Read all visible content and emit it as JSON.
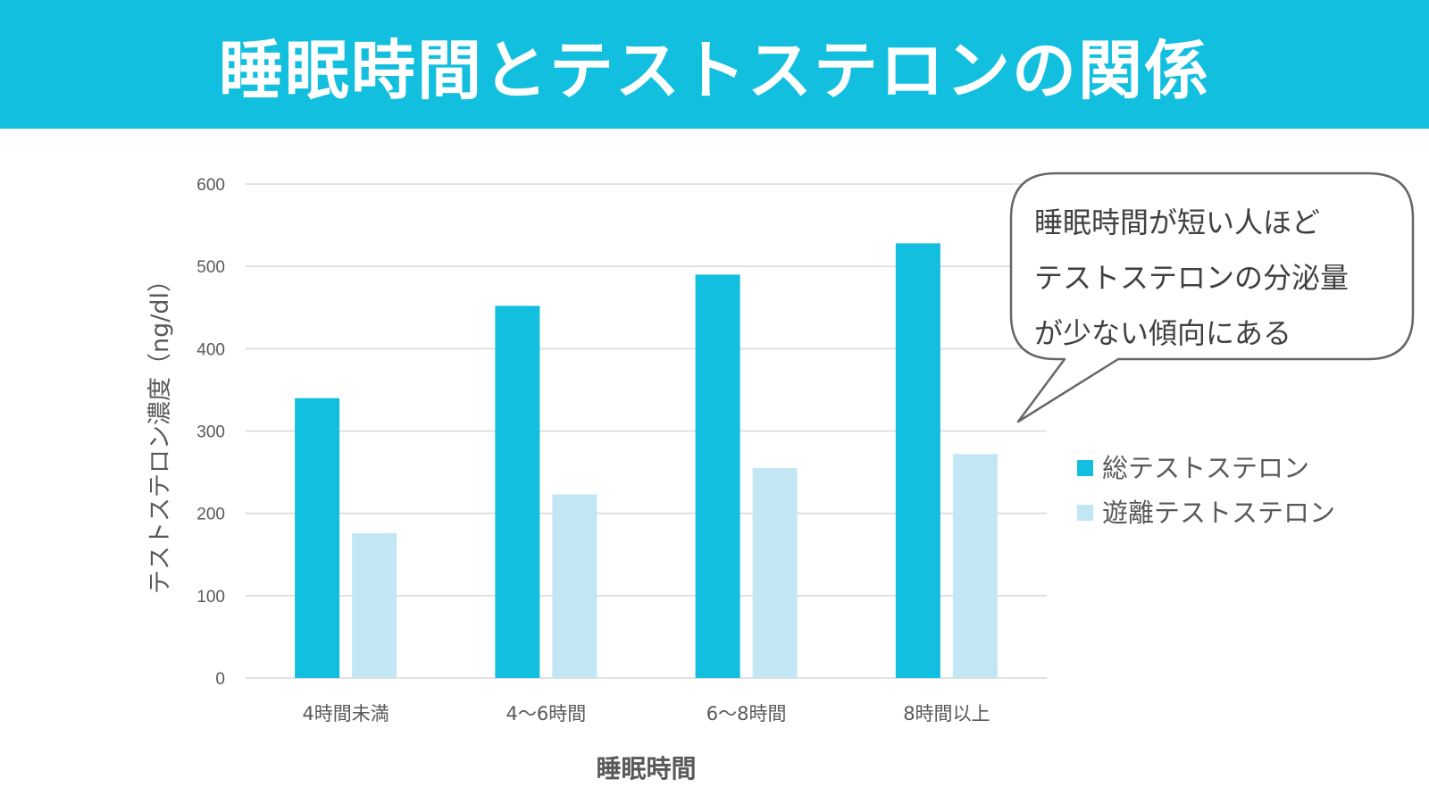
{
  "header": {
    "title": "睡眠時間とテストステロンの関係"
  },
  "callout": {
    "lines": [
      "睡眠時間が短い人ほど",
      "テストステロンの分泌量",
      "が少ない傾向にある"
    ]
  },
  "colors": {
    "banner": "#12bfde",
    "total": "#12bfde",
    "free": "#c2e6f4",
    "grid": "#d9d9d9",
    "text": "#595959"
  },
  "chart_data": {
    "type": "bar",
    "categories": [
      "4時間未満",
      "4〜6時間",
      "6〜8時間",
      "8時間以上"
    ],
    "series": [
      {
        "name": "総テストステロン",
        "values": [
          340,
          452,
          490,
          528
        ]
      },
      {
        "name": "遊離テストステロン",
        "values": [
          176,
          223,
          255,
          272
        ]
      }
    ],
    "xlabel": "睡眠時間",
    "ylabel": "テストステロン濃度（ng/dl）",
    "ylim": [
      0,
      600
    ],
    "yticks": [
      0,
      100,
      200,
      300,
      400,
      500,
      600
    ],
    "grid": true,
    "legend": "right"
  }
}
